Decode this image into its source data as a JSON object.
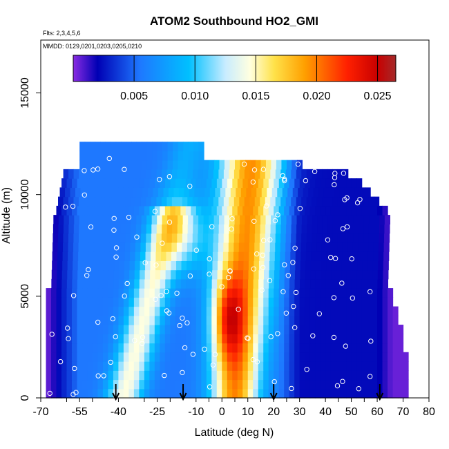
{
  "chart_data": {
    "type": "heatmap",
    "title": "ATOM2 Southbound HO2_GMI",
    "note_flights": "Flts: 2,3,4,5,6",
    "note_dates": "MMDD: 0129,0201,0203,0205,0210",
    "xlabel": "Latitude (deg N)",
    "ylabel": "Altitude (m)",
    "xlim": [
      -70,
      80
    ],
    "ylim": [
      0,
      17600
    ],
    "x_tick_values": [
      -70,
      -60,
      -55,
      -50,
      -40,
      -30,
      -25,
      -20,
      -10,
      -5,
      0,
      5,
      10,
      15,
      20,
      25,
      30,
      40,
      45,
      50,
      55,
      60,
      70,
      80
    ],
    "x_tick_labels": [
      "-70",
      "-55",
      "-40",
      "-25",
      "-10",
      "0",
      "10",
      "20",
      "30",
      "40",
      "50",
      "60",
      "70",
      "80"
    ],
    "x_tick_label_values": [
      -70,
      -55,
      -40,
      -25,
      -10,
      0,
      10,
      20,
      30,
      40,
      50,
      60,
      70,
      80
    ],
    "y_ticks": [
      0,
      5000,
      10000,
      15000
    ],
    "y_tick_labels": [
      "0",
      "5000",
      "10000",
      "15000"
    ],
    "colorbar": {
      "range": [
        0,
        0.0265
      ],
      "ticks": [
        0.005,
        0.01,
        0.015,
        0.02,
        0.025
      ],
      "tick_labels": [
        "0.005",
        "0.010",
        "0.015",
        "0.020",
        "0.025"
      ],
      "stops": [
        {
          "v": 0.0,
          "color": "#8a2be2"
        },
        {
          "v": 0.002,
          "color": "#0000b4"
        },
        {
          "v": 0.0055,
          "color": "#1e78ff"
        },
        {
          "v": 0.0095,
          "color": "#00c0ff"
        },
        {
          "v": 0.0125,
          "color": "#c8ecff"
        },
        {
          "v": 0.0145,
          "color": "#ffffe0"
        },
        {
          "v": 0.0165,
          "color": "#ffe24a"
        },
        {
          "v": 0.019,
          "color": "#ffa000"
        },
        {
          "v": 0.0225,
          "color": "#ff2000"
        },
        {
          "v": 0.025,
          "color": "#c80000"
        },
        {
          "v": 0.0265,
          "color": "#a52a2a"
        }
      ]
    },
    "arrows_latitude": [
      -41,
      -15,
      20,
      61
    ],
    "colors": {
      "white_points": "#ffffff",
      "arrow": "#000000",
      "axis": "#000000"
    },
    "grid": false
  }
}
